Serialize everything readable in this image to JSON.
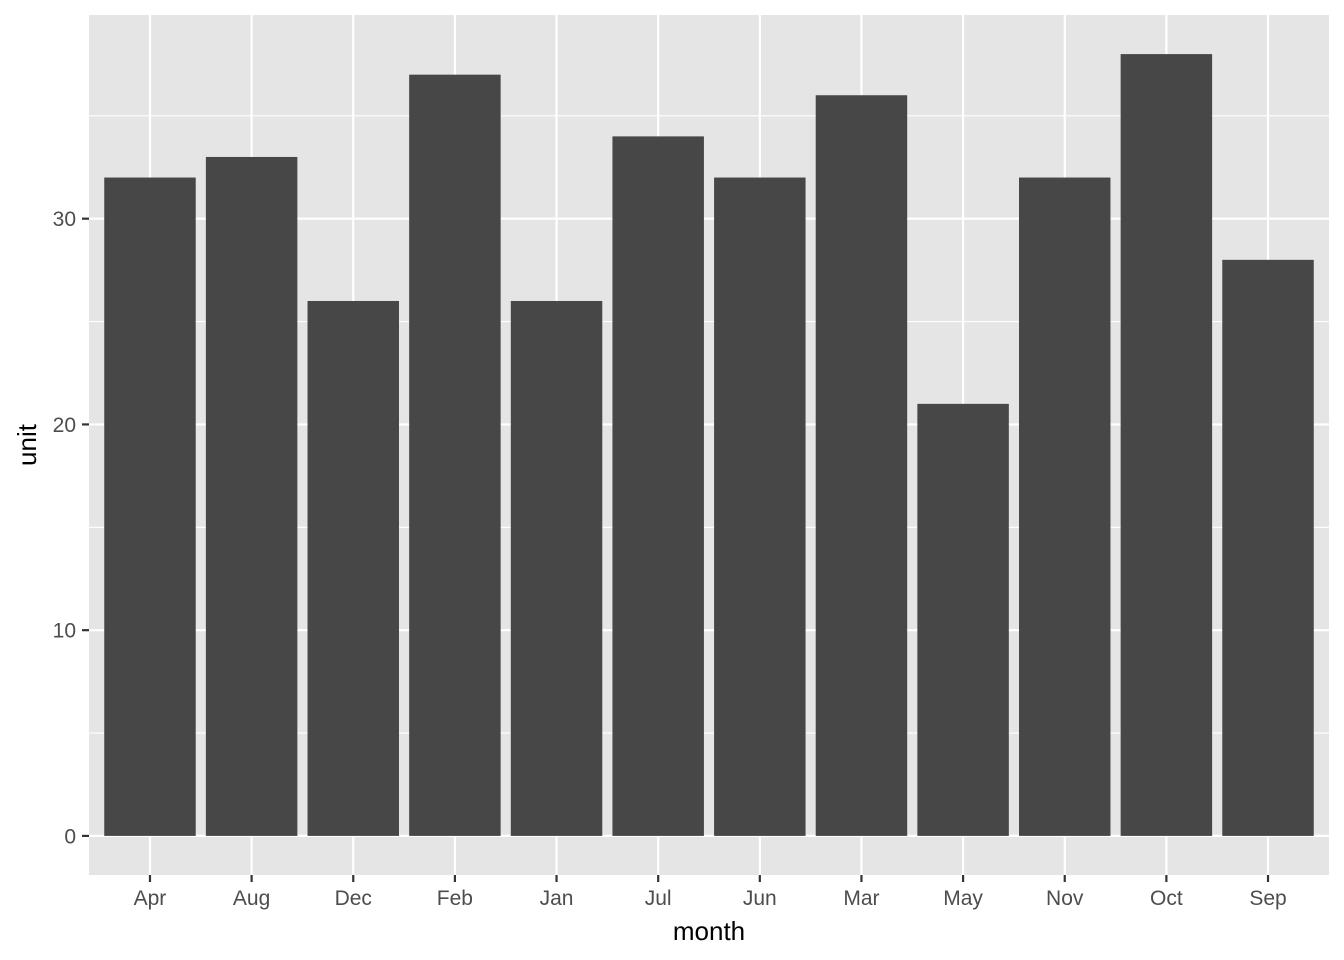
{
  "chart_data": {
    "type": "bar",
    "title": "",
    "xlabel": "month",
    "ylabel": "unit",
    "categories": [
      "Apr",
      "Aug",
      "Dec",
      "Feb",
      "Jan",
      "Jul",
      "Jun",
      "Mar",
      "May",
      "Nov",
      "Oct",
      "Sep"
    ],
    "values": [
      32,
      33,
      26,
      37,
      26,
      34,
      32,
      36,
      21,
      32,
      38,
      28
    ],
    "ylim": [
      -1.9,
      39.9
    ],
    "yticks": [
      0,
      10,
      20,
      30
    ],
    "ytick_labels": [
      "0",
      "10",
      "20",
      "30"
    ],
    "grid": true,
    "legend": "none",
    "colors": {
      "bar": "#474747",
      "panel_background": "#e5e5e5",
      "grid": "#ffffff",
      "tick_text": "#4d4d4d",
      "tick_mark": "#333333"
    }
  }
}
